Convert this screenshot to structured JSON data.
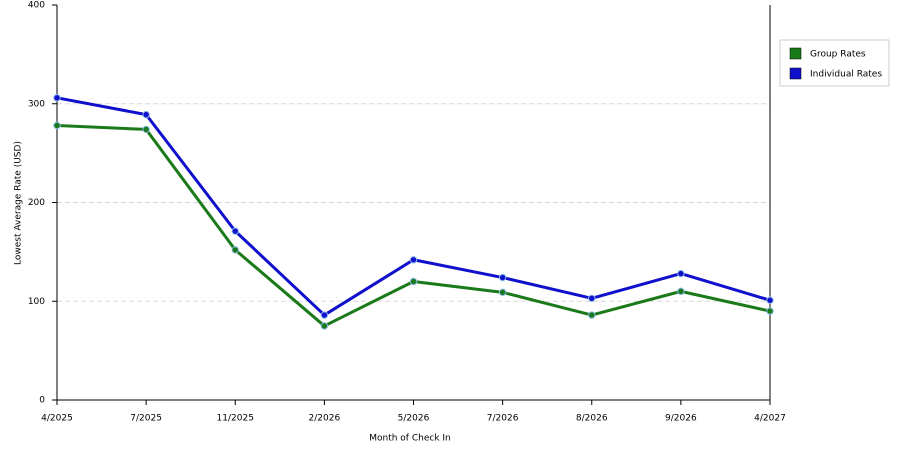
{
  "chart_data": {
    "type": "line",
    "x_label": "Month of Check In",
    "y_label": "Lowest Average Rate (USD)",
    "categories": [
      "4/2025",
      "7/2025",
      "11/2025",
      "2/2026",
      "5/2026",
      "7/2026",
      "8/2026",
      "9/2026",
      "4/2027"
    ],
    "series": [
      {
        "name": "Group Rates",
        "color": "#1a7a1a",
        "values": [
          278,
          274,
          152,
          75,
          120,
          109,
          86,
          110,
          90
        ]
      },
      {
        "name": "Individual Rates",
        "color": "#1010cc",
        "values": [
          306,
          289,
          171,
          86,
          142,
          124,
          103,
          128,
          101
        ]
      }
    ],
    "ylim": [
      0,
      400
    ],
    "yticks": [
      0,
      100,
      200,
      300,
      400
    ],
    "grid": true,
    "legend": "right"
  }
}
